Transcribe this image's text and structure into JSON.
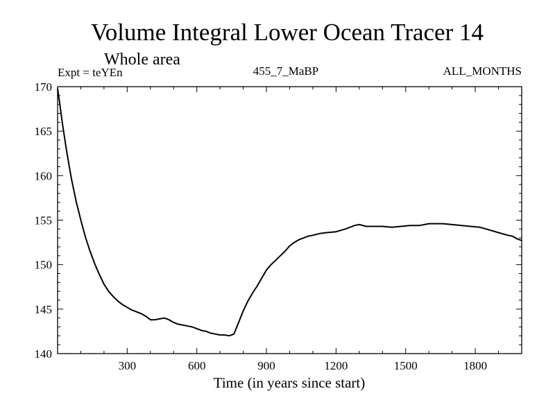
{
  "chart_data": {
    "type": "line",
    "title": "Volume Integral Lower Ocean Tracer 14",
    "subtitle": "Whole area",
    "expt_label": "Expt = teYEn",
    "run_label": "455_7_MaBP",
    "months_label": "ALL_MONTHS",
    "xlabel": "Time (in years since start)",
    "ylabel": "",
    "xlim": [
      0,
      2000
    ],
    "ylim": [
      140,
      170
    ],
    "xticks": [
      300,
      600,
      900,
      1200,
      1500,
      1800
    ],
    "yticks": [
      140,
      145,
      150,
      155,
      160,
      165,
      170
    ],
    "grid": false,
    "series": [
      {
        "name": "Volume Integral Lower Ocean Tracer 14",
        "color": "#000000",
        "x": [
          0,
          10,
          20,
          30,
          40,
          50,
          60,
          80,
          100,
          120,
          140,
          160,
          180,
          200,
          220,
          240,
          260,
          280,
          300,
          320,
          340,
          360,
          380,
          400,
          420,
          440,
          460,
          480,
          500,
          520,
          540,
          560,
          580,
          600,
          620,
          640,
          660,
          680,
          700,
          720,
          740,
          760,
          780,
          800,
          820,
          840,
          860,
          880,
          900,
          920,
          940,
          960,
          980,
          1000,
          1020,
          1040,
          1060,
          1080,
          1100,
          1130,
          1160,
          1200,
          1240,
          1280,
          1300,
          1330,
          1360,
          1400,
          1440,
          1480,
          1520,
          1560,
          1600,
          1640,
          1660,
          1700,
          1740,
          1780,
          1820,
          1860,
          1900,
          1940,
          1960,
          1980,
          2000
        ],
        "values": [
          169.8,
          168.0,
          166.0,
          164.3,
          162.6,
          161.1,
          159.6,
          157.1,
          155.0,
          153.1,
          151.5,
          150.1,
          148.9,
          147.8,
          147.0,
          146.4,
          145.9,
          145.5,
          145.2,
          144.9,
          144.7,
          144.5,
          144.2,
          143.8,
          143.8,
          143.9,
          144.0,
          143.8,
          143.5,
          143.3,
          143.2,
          143.1,
          143.0,
          142.8,
          142.6,
          142.5,
          142.3,
          142.2,
          142.1,
          142.1,
          142.0,
          142.2,
          143.5,
          144.8,
          145.9,
          146.8,
          147.6,
          148.5,
          149.4,
          150.0,
          150.5,
          151.0,
          151.5,
          152.1,
          152.5,
          152.8,
          153.0,
          153.2,
          153.3,
          153.5,
          153.6,
          153.7,
          154.0,
          154.4,
          154.5,
          154.3,
          154.3,
          154.3,
          154.2,
          154.3,
          154.4,
          154.4,
          154.6,
          154.6,
          154.6,
          154.5,
          154.4,
          154.3,
          154.2,
          153.9,
          153.6,
          153.3,
          153.2,
          152.9,
          152.7
        ]
      }
    ]
  }
}
